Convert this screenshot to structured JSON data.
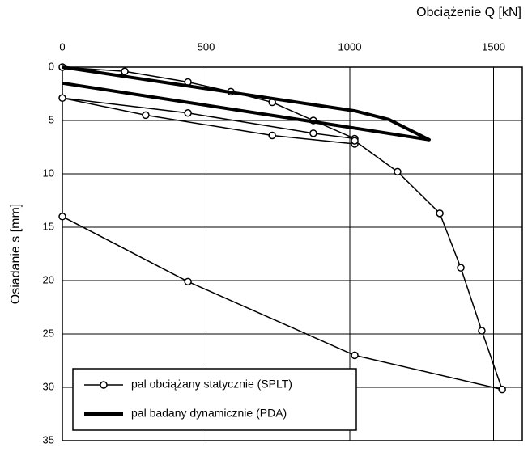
{
  "chart_data": {
    "type": "line",
    "x_label": "Obciążenie  Q  [kN]",
    "y_label": "Osiadanie  s  [mm]",
    "xlim": [
      0,
      1600
    ],
    "xticks": [
      0,
      500,
      1000,
      1500
    ],
    "ylim": [
      0,
      35
    ],
    "yticks": [
      0,
      5,
      10,
      15,
      20,
      25,
      30,
      35
    ],
    "y_inverted": true,
    "x_axis_top": true,
    "grid": true,
    "legend": "lower left",
    "series": [
      {
        "name": "pal obciążany statycznie (SPLT)",
        "color": "#000000",
        "marker": "circle",
        "width": 1.5,
        "x": [
          0,
          217,
          437,
          586,
          730,
          873,
          1017,
          873,
          437,
          0,
          290,
          730,
          1017,
          1017,
          1166,
          1313,
          1386,
          1459,
          1530,
          1017,
          437,
          0
        ],
        "y": [
          0,
          0.4,
          1.4,
          2.3,
          3.3,
          5.0,
          6.7,
          6.2,
          4.3,
          2.9,
          4.5,
          6.4,
          7.2,
          6.9,
          9.8,
          13.7,
          18.8,
          24.7,
          30.2,
          27.0,
          20.1,
          14.0
        ]
      },
      {
        "name": "pal badany dynamicznie (PDA)",
        "color": "#000000",
        "marker": "none",
        "width": 4,
        "x": [
          0,
          1017,
          1135,
          1276,
          1037,
          0
        ],
        "y": [
          0,
          4.1,
          4.9,
          6.8,
          5.8,
          1.5
        ]
      }
    ]
  }
}
